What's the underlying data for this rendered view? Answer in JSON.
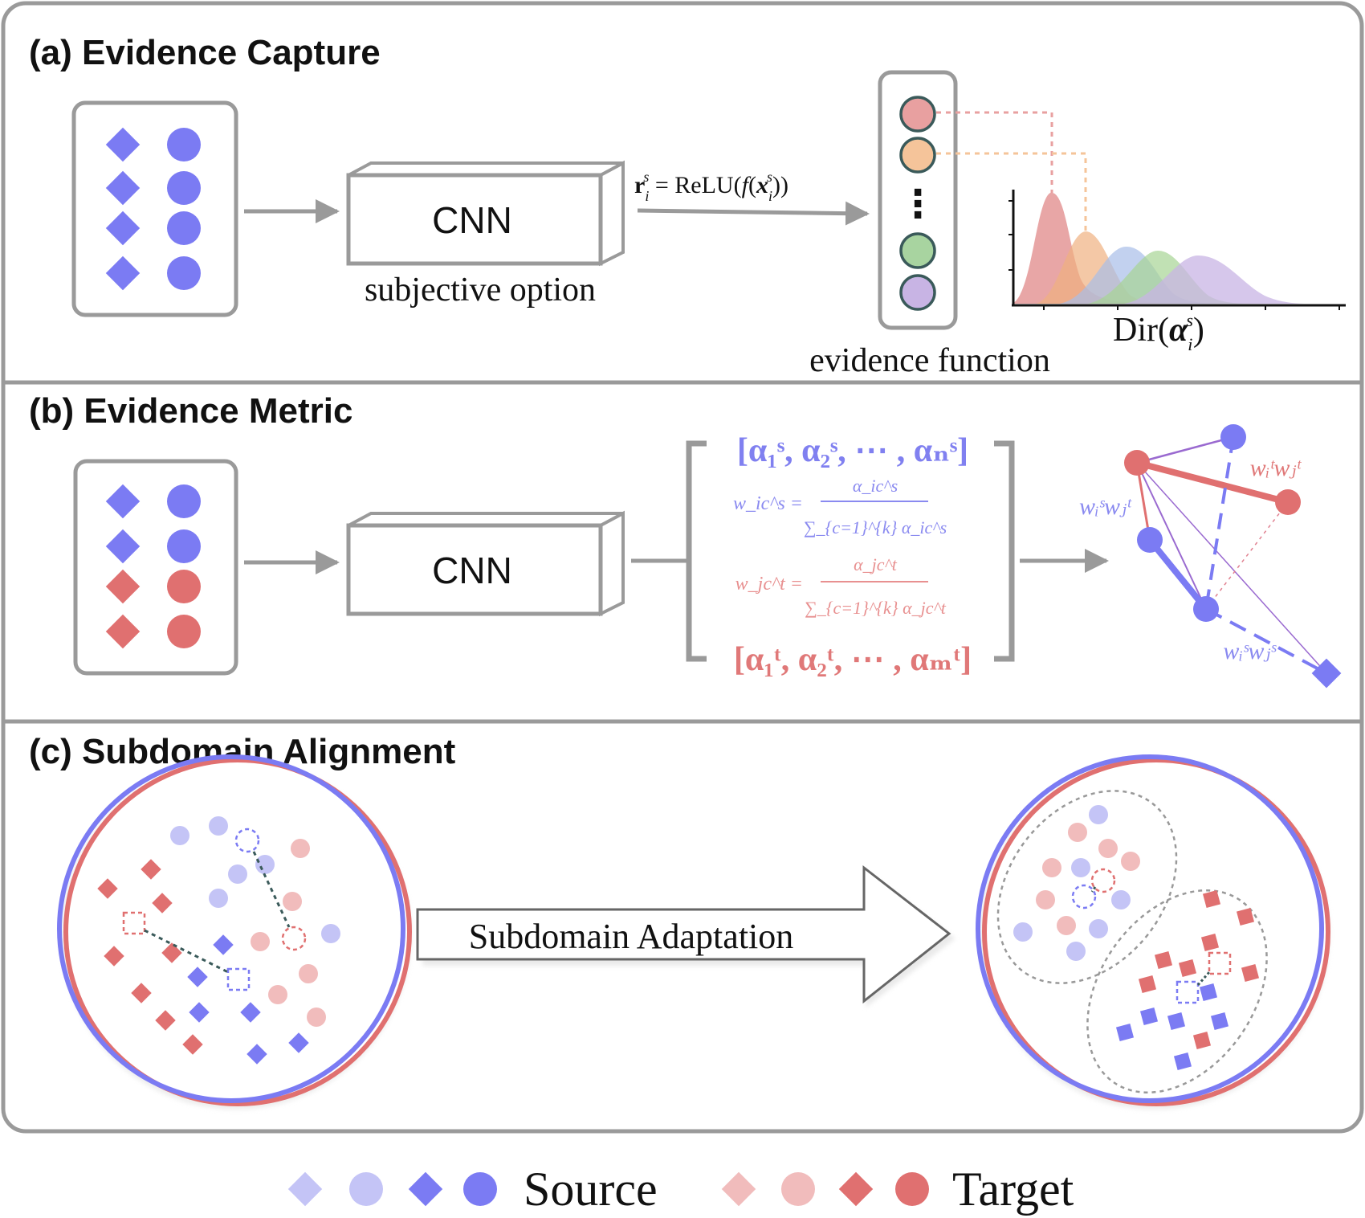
{
  "colors": {
    "source": "#7b7bf3",
    "source_light": "#c4c4f6",
    "target": "#e07070",
    "target_light": "#f1bcbc",
    "frame": "#9a9a9a",
    "dist_red": "#e08888",
    "dist_orange": "#f0b080",
    "dist_blue": "#a8bde8",
    "dist_green": "#a6d494",
    "dist_purple": "#c8b4e4"
  },
  "panel_a": {
    "title": "(a) Evidence Capture",
    "cnn_label": "CNN",
    "cnn_caption": "subjective option",
    "arrow_formula": "r_i^s = ReLU(f(x_i^s))",
    "formula_r": "r",
    "formula_sub": "i",
    "formula_sup": "s",
    "formula_eq": " = ReLU(",
    "formula_f": "f",
    "formula_open": "(",
    "formula_x": "x",
    "formula_close": "))",
    "ellipsis": "⋮",
    "evidence_caption": "evidence function",
    "dir_caption_text": "Dir(",
    "dir_alpha": "α",
    "dir_close": ")"
  },
  "panel_b": {
    "title": "(b) Evidence Metric",
    "cnn_label": "CNN",
    "source_row": "[α₁ˢ, α₂ˢ, ⋯ , αₙˢ]",
    "w_source_lhs": "w_ic^s =",
    "w_source_num": "α_ic^s",
    "w_source_den": "∑_{c=1}^{k} α_ic^s",
    "w_target_lhs": "w_jc^t =",
    "w_target_num": "α_jc^t",
    "w_target_den": "∑_{c=1}^{k} α_jc^t",
    "target_row": "[α₁ᵗ, α₂ᵗ, ⋯ , αₘᵗ]",
    "graph_label_tt": "wᵢᵗwⱼᵗ",
    "graph_label_st": "wᵢˢwⱼᵗ",
    "graph_label_ss": "wᵢˢwⱼˢ"
  },
  "panel_c": {
    "title": "(c) Subdomain Alignment",
    "arrow_label": "Subdomain Adaptation"
  },
  "legend": {
    "source_label": "Source",
    "target_label": "Target"
  }
}
